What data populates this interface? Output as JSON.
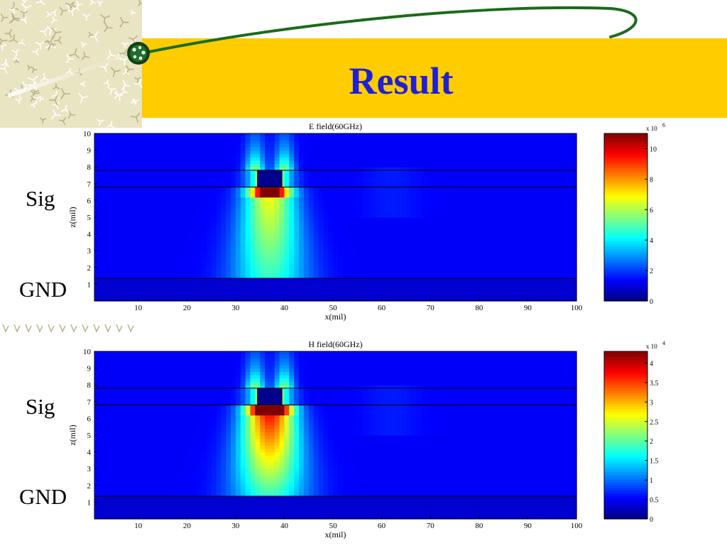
{
  "slide": {
    "title": "Result",
    "labels": {
      "sig_top": "Sig",
      "gnd_top": "GND",
      "sig_bottom": "Sig",
      "gnd_bottom": "GND"
    }
  },
  "colors": {
    "banner": "#FFCC00",
    "title": "#1F1FD8",
    "swoosh": "#1B6B1B",
    "field_background": "#0A1FB0"
  },
  "chart_data": [
    {
      "type": "heatmap",
      "title": "E field(60GHz)",
      "xlabel": "x(mil)",
      "ylabel": "z(mil)",
      "xlim": [
        1,
        100
      ],
      "ylim": [
        0,
        10
      ],
      "xticks": [
        10,
        20,
        30,
        40,
        50,
        60,
        70,
        80,
        90,
        100
      ],
      "yticks": [
        1,
        2,
        3,
        4,
        5,
        6,
        7,
        8,
        9,
        10
      ],
      "horizontal_lines_z": [
        7.8,
        6.8,
        1.35
      ],
      "signal_conductor": {
        "x": [
          34.5,
          39.5
        ],
        "z": [
          6.8,
          7.8
        ]
      },
      "field_concentration": {
        "x_center": 37,
        "peak_region": "edges of signal conductor",
        "spread_down_to_z": 1.35
      },
      "colorbar": {
        "min": 0,
        "max": 11,
        "multiplier": "x 10",
        "exponent": "6",
        "ticks": [
          0,
          2,
          4,
          6,
          8,
          10
        ],
        "colormap": "jet"
      }
    },
    {
      "type": "heatmap",
      "title": "H field(60GHz)",
      "xlabel": "x(mil)",
      "ylabel": "z(mil)",
      "xlim": [
        1,
        100
      ],
      "ylim": [
        0,
        10
      ],
      "xticks": [
        10,
        20,
        30,
        40,
        50,
        60,
        70,
        80,
        90,
        100
      ],
      "yticks": [
        1,
        2,
        3,
        4,
        5,
        6,
        7,
        8,
        9,
        10
      ],
      "horizontal_lines_z": [
        7.8,
        6.8,
        1.35
      ],
      "signal_conductor": {
        "x": [
          34.5,
          39.5
        ],
        "z": [
          6.8,
          7.8
        ]
      },
      "field_concentration": {
        "x_center": 37,
        "peak_region": "beneath signal conductor",
        "spread_down_to_z": 1.35
      },
      "colorbar": {
        "min": 0,
        "max": 4.3,
        "multiplier": "x 10",
        "exponent": "4",
        "ticks": [
          0,
          0.5,
          1,
          1.5,
          2,
          2.5,
          3,
          3.5,
          4
        ],
        "colormap": "jet"
      }
    }
  ]
}
